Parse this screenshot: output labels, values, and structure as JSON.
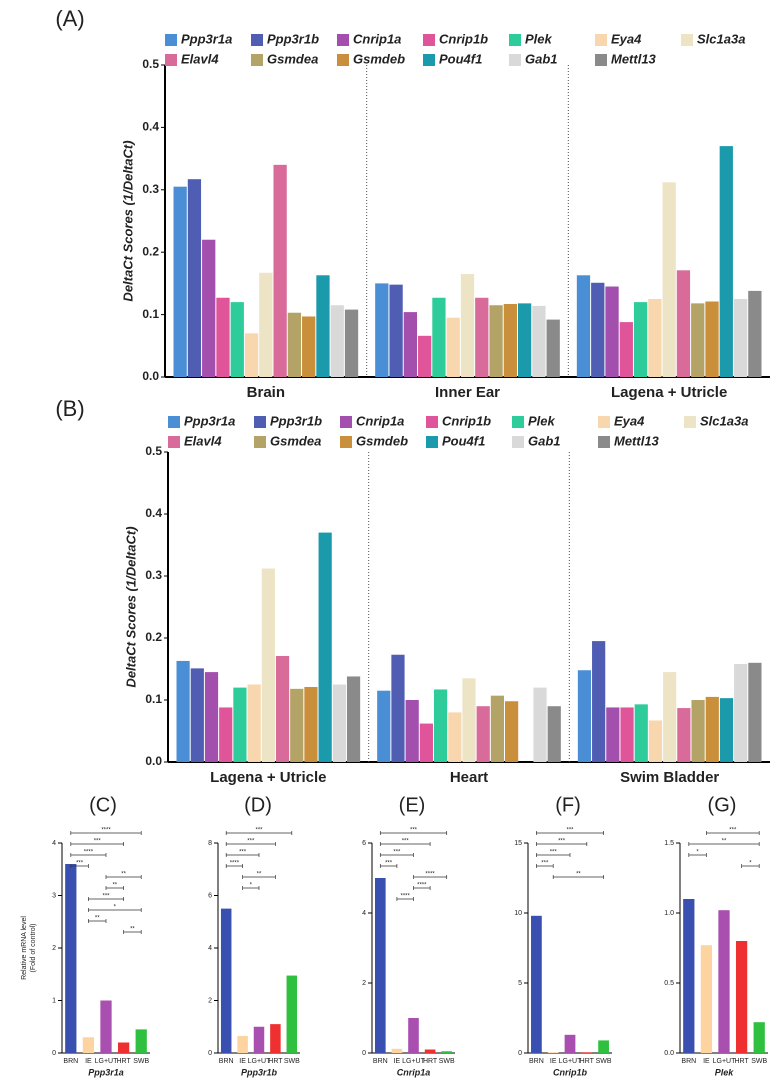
{
  "chart_data": [
    {
      "type": "grouped-bar",
      "panel_label": "(A)",
      "ylabel": "DeltaCt Scores (1/DeltaCt)",
      "categories": [
        "Brain",
        "Inner Ear",
        "Lagena + Utricle"
      ],
      "ylim": [
        0,
        0.5
      ],
      "yticks": [
        {
          "value": 0,
          "label": "0.0"
        },
        0.1,
        0.2,
        0.3,
        0.4,
        0.5
      ],
      "series": [
        {
          "name": "Ppp3r1a",
          "color": "#4a8fd6",
          "values": [
            0.305,
            0.15,
            0.163
          ]
        },
        {
          "name": "Ppp3r1b",
          "color": "#4f5db3",
          "values": [
            0.317,
            0.148,
            0.151
          ]
        },
        {
          "name": "Cnrip1a",
          "color": "#a24fae",
          "values": [
            0.22,
            0.104,
            0.145
          ]
        },
        {
          "name": "Cnrip1b",
          "color": "#e0559a",
          "values": [
            0.127,
            0.066,
            0.088
          ]
        },
        {
          "name": "Plek",
          "color": "#2fcc9b",
          "values": [
            0.12,
            0.127,
            0.12
          ]
        },
        {
          "name": "Eya4",
          "color": "#f8d6ae",
          "values": [
            0.07,
            0.095,
            0.125
          ]
        },
        {
          "name": "Slc1a3a",
          "color": "#ece4c4",
          "values": [
            0.167,
            0.165,
            0.312
          ]
        },
        {
          "name": "Elavl4",
          "color": "#d96b9b",
          "values": [
            0.34,
            0.127,
            0.171
          ]
        },
        {
          "name": "Gsmdea",
          "color": "#b3a366",
          "values": [
            0.103,
            0.115,
            0.118
          ]
        },
        {
          "name": "Gsmdeb",
          "color": "#c98f3b",
          "values": [
            0.097,
            0.117,
            0.121
          ]
        },
        {
          "name": "Pou4f1",
          "color": "#1a9aab",
          "values": [
            0.163,
            0.118,
            0.37
          ]
        },
        {
          "name": "Gab1",
          "color": "#d9d9d9",
          "values": [
            0.115,
            0.114,
            0.125
          ]
        },
        {
          "name": "Mettl13",
          "color": "#8a8a8a",
          "values": [
            0.108,
            0.092,
            0.138
          ]
        }
      ]
    },
    {
      "type": "grouped-bar",
      "panel_label": "(B)",
      "ylabel": "DeltaCt Scores (1/DeltaCt)",
      "categories": [
        "Lagena + Utricle",
        "Heart",
        "Swim Bladder"
      ],
      "ylim": [
        0,
        0.5
      ],
      "yticks": [
        {
          "value": 0,
          "label": "0.0"
        },
        0.1,
        0.2,
        0.3,
        0.4,
        0.5
      ],
      "series": [
        {
          "name": "Ppp3r1a",
          "color": "#4a8fd6",
          "values": [
            0.163,
            0.115,
            0.148
          ]
        },
        {
          "name": "Ppp3r1b",
          "color": "#4f5db3",
          "values": [
            0.151,
            0.173,
            0.195
          ]
        },
        {
          "name": "Cnrip1a",
          "color": "#a24fae",
          "values": [
            0.145,
            0.1,
            0.088
          ]
        },
        {
          "name": "Cnrip1b",
          "color": "#e0559a",
          "values": [
            0.088,
            0.062,
            0.088
          ]
        },
        {
          "name": "Plek",
          "color": "#2fcc9b",
          "values": [
            0.12,
            0.117,
            0.093
          ]
        },
        {
          "name": "Eya4",
          "color": "#f8d6ae",
          "values": [
            0.125,
            0.08,
            0.067
          ]
        },
        {
          "name": "Slc1a3a",
          "color": "#ece4c4",
          "values": [
            0.312,
            0.135,
            0.145
          ]
        },
        {
          "name": "Elavl4",
          "color": "#d96b9b",
          "values": [
            0.171,
            0.09,
            0.087
          ]
        },
        {
          "name": "Gsmdea",
          "color": "#b3a366",
          "values": [
            0.118,
            0.107,
            0.1
          ]
        },
        {
          "name": "Gsmdeb",
          "color": "#c98f3b",
          "values": [
            0.121,
            0.098,
            0.105
          ]
        },
        {
          "name": "Pou4f1",
          "color": "#1a9aab",
          "values": [
            0.37,
            0,
            0.103
          ]
        },
        {
          "name": "Gab1",
          "color": "#d9d9d9",
          "values": [
            0.125,
            0.12,
            0.158
          ]
        },
        {
          "name": "Mettl13",
          "color": "#8a8a8a",
          "values": [
            0.138,
            0.09,
            0.16
          ]
        }
      ]
    },
    {
      "type": "bar",
      "panel_label": "(C)",
      "ylabel": [
        "Relative mRNA level",
        "(Fold of control)"
      ],
      "xlabel": "Ppp3r1a",
      "categories": [
        "BRN",
        "IE",
        "LG+UT",
        "HRT",
        "SWB"
      ],
      "colors": [
        "#3a50b0",
        "#fdd3a0",
        "#a94fb0",
        "#ee3030",
        "#30c040"
      ],
      "values": [
        3.6,
        0.3,
        1.0,
        0.2,
        0.45
      ],
      "ylim": [
        0,
        4
      ],
      "yticks": [
        0,
        1,
        2,
        3,
        4
      ],
      "annotations": [
        "****",
        "***",
        "****",
        "***",
        "**",
        "**",
        "***",
        "*",
        "**",
        "**"
      ]
    },
    {
      "type": "bar",
      "panel_label": "(D)",
      "xlabel": "Ppp3r1b",
      "categories": [
        "BRN",
        "IE",
        "LG+UT",
        "HRT",
        "SWB"
      ],
      "colors": [
        "#3a50b0",
        "#fdd3a0",
        "#a94fb0",
        "#ee3030",
        "#30c040"
      ],
      "values": [
        5.5,
        0.65,
        1.0,
        1.1,
        2.95
      ],
      "ylim": [
        0,
        8
      ],
      "yticks": [
        0,
        2,
        4,
        6,
        8
      ],
      "annotations": [
        "***",
        "***",
        "***",
        "****",
        "**",
        "*"
      ]
    },
    {
      "type": "bar",
      "panel_label": "(E)",
      "xlabel": "Cnrip1a",
      "categories": [
        "BRN",
        "IE",
        "LG+UT",
        "HRT",
        "SWB"
      ],
      "colors": [
        "#3a50b0",
        "#fdd3a0",
        "#a94fb0",
        "#ee3030",
        "#30c040"
      ],
      "values": [
        5.0,
        0.12,
        1.0,
        0.1,
        0.05
      ],
      "ylim": [
        0,
        6
      ],
      "yticks": [
        0,
        2,
        4,
        6
      ],
      "annotations": [
        "***",
        "***",
        "***",
        "***",
        "****",
        "****",
        "****"
      ]
    },
    {
      "type": "bar",
      "panel_label": "(F)",
      "xlabel": "Cnrip1b",
      "categories": [
        "BRN",
        "IE",
        "LG+UT",
        "HRT",
        "SWB"
      ],
      "colors": [
        "#3a50b0",
        "#fdd3a0",
        "#a94fb0",
        "#ee3030",
        "#30c040"
      ],
      "values": [
        9.8,
        0.05,
        1.3,
        0.05,
        0.9
      ],
      "ylim": [
        0,
        15
      ],
      "yticks": [
        0,
        5,
        10,
        15
      ],
      "annotations": [
        "***",
        "***",
        "***",
        "***",
        "**"
      ]
    },
    {
      "type": "bar",
      "panel_label": "(G)",
      "xlabel": "Plek",
      "categories": [
        "BRN",
        "IE",
        "LG+UT",
        "HRT",
        "SWB"
      ],
      "colors": [
        "#3a50b0",
        "#fdd3a0",
        "#a94fb0",
        "#ee3030",
        "#30c040"
      ],
      "values": [
        1.1,
        0.77,
        1.02,
        0.8,
        0.22
      ],
      "ylim": [
        0,
        1.5
      ],
      "yticks": [
        {
          "value": 0,
          "label": "0.0"
        },
        0.5,
        {
          "value": 1,
          "label": "1.0"
        },
        1.5
      ],
      "annotations": [
        "***",
        "**",
        "*",
        "*"
      ]
    }
  ]
}
